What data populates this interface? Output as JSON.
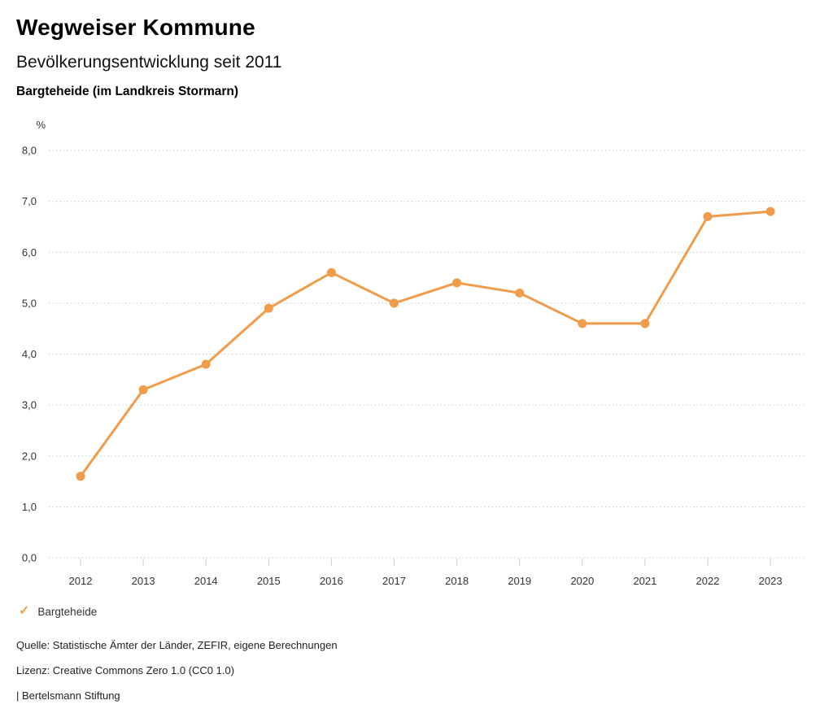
{
  "header": {
    "title": "Wegweiser Kommune",
    "subtitle": "Bevölkerungsentwicklung seit 2011",
    "location": "Bargteheide (im Landkreis Stormarn)"
  },
  "chart_data": {
    "type": "line",
    "title": "Bevölkerungsentwicklung seit 2011",
    "unit_label": "%",
    "categories": [
      "2012",
      "2013",
      "2014",
      "2015",
      "2016",
      "2017",
      "2018",
      "2019",
      "2020",
      "2021",
      "2022",
      "2023"
    ],
    "series": [
      {
        "name": "Bargteheide",
        "values": [
          1.6,
          3.3,
          3.8,
          4.9,
          5.6,
          5.0,
          5.4,
          5.2,
          4.6,
          4.6,
          6.7,
          6.8
        ],
        "color": "#F09C4A"
      }
    ],
    "ylim": [
      0.0,
      8.0
    ],
    "ytick_step": 1.0,
    "ytick_labels": [
      "0,0",
      "1,0",
      "2,0",
      "3,0",
      "4,0",
      "5,0",
      "6,0",
      "7,0",
      "8,0"
    ],
    "grid": "horizontal-dotted",
    "legend_position": "bottom-left"
  },
  "legend": {
    "check_icon": "✓",
    "items": [
      {
        "label": "Bargteheide"
      }
    ]
  },
  "footer": {
    "source": "Quelle: Statistische Ämter der Länder, ZEFIR, eigene Berechnungen",
    "license": "Lizenz: Creative Commons Zero 1.0 (CC0 1.0)",
    "brand": "| Bertelsmann Stiftung"
  },
  "colors": {
    "accent": "#F09C4A",
    "grid": "#C9C9C9",
    "axis_tick": "#CCCCCC",
    "axis_text": "#333333",
    "text": "#222222"
  }
}
